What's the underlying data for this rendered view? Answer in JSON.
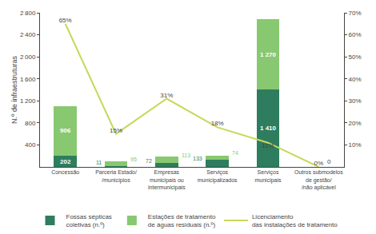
{
  "chart_data": {
    "type": "bar",
    "stacked": true,
    "data_labels": true,
    "grid": false,
    "legend": "bottom",
    "categories": [
      "Concessão",
      "Parceria Estado/\n/municípios",
      "Empresas\nmunicipais ou\nintermunicipais",
      "Serviços\nmunicipalizados",
      "Serviços\nmunicipais",
      "Outros submodelos\nde gestão/\n/não aplicável"
    ],
    "series": [
      {
        "name": "Fossas sépticas\ncoletivas (n.º)",
        "type": "bar",
        "color": "#2d7d5e",
        "values": [
          202,
          11,
          72,
          133,
          1410,
          0
        ],
        "value_labels": [
          "202",
          "11",
          "72",
          "133",
          "1 410",
          null
        ]
      },
      {
        "name": "Estações de tratamento\nde águas residuais (n.º)",
        "type": "bar",
        "color": "#88c870",
        "values": [
          906,
          95,
          113,
          74,
          1270,
          0
        ],
        "value_labels": [
          "906",
          "95",
          "113",
          "74",
          "1 270",
          null
        ]
      },
      {
        "name": "Licenciamento\ndas instalações de tratamento",
        "type": "line",
        "axis": "y2",
        "color": "#c8d85a",
        "values": [
          65,
          15,
          31,
          18,
          11,
          0
        ],
        "value_labels": [
          "65%",
          "15%",
          "31%",
          "18%",
          "11%",
          "0%"
        ]
      }
    ],
    "ylabel": "N.º de infraestruturas",
    "ylim": [
      0,
      2800
    ],
    "yticks": [
      400,
      800,
      {
        "value": 1200,
        "label": "1 200"
      },
      {
        "value": 1600,
        "label": "1 600"
      },
      {
        "value": 2000,
        "label": "2 000"
      },
      {
        "value": 2400,
        "label": "2 400"
      },
      {
        "value": 2800,
        "label": "2 800"
      }
    ],
    "y2lim": [
      0,
      70
    ],
    "y2ticks": [
      {
        "value": 10,
        "label": "10%"
      },
      {
        "value": 20,
        "label": "20%"
      },
      {
        "value": 30,
        "label": "30%"
      },
      {
        "value": 40,
        "label": "40%"
      },
      {
        "value": 50,
        "label": "50%"
      },
      {
        "value": 60,
        "label": "60%"
      },
      {
        "value": 70,
        "label": "70%"
      }
    ],
    "annotations": [
      {
        "text": "0",
        "x": "Outros submodelos\nde gestão/\n/não aplicável",
        "y": 0,
        "axis": "y2"
      }
    ]
  }
}
